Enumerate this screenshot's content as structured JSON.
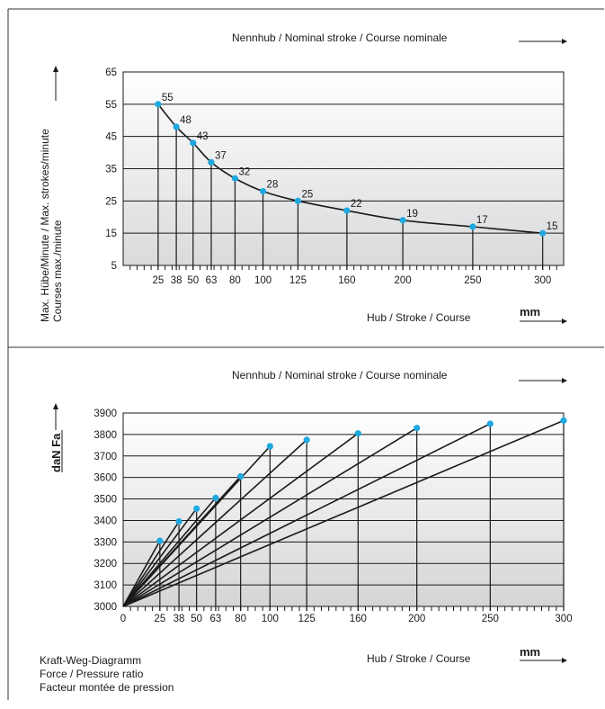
{
  "header_top": {
    "nominal_stroke_label": "Nennhub / Nominal stroke / Course nominale"
  },
  "header_bottom": {
    "nominal_stroke_label": "Nennhub / Nominal stroke / Course nominale"
  },
  "footer_caption": {
    "line1": "Kraft-Weg-Diagramm",
    "line2": "Force / Pressure ratio",
    "line3": "Facteur montée de pression"
  },
  "chart_data": [
    {
      "type": "line",
      "title": "",
      "ylabel_line1": "Max. Hübe/Minute / Max. strokes/minute",
      "ylabel_line2": "Courses max./minute",
      "xlabel": "Hub / Stroke / Course",
      "xunit": "mm",
      "ylim": [
        5,
        65
      ],
      "yticks": [
        5,
        15,
        25,
        35,
        45,
        55,
        65
      ],
      "xlim": [
        0,
        315
      ],
      "xticks": [
        25,
        38,
        50,
        63,
        80,
        100,
        125,
        160,
        200,
        250,
        300
      ],
      "grid": true,
      "points": [
        {
          "x": 25,
          "y": 55
        },
        {
          "x": 38,
          "y": 48
        },
        {
          "x": 50,
          "y": 43
        },
        {
          "x": 63,
          "y": 37
        },
        {
          "x": 80,
          "y": 32
        },
        {
          "x": 100,
          "y": 28
        },
        {
          "x": 125,
          "y": 25
        },
        {
          "x": 160,
          "y": 22
        },
        {
          "x": 200,
          "y": 19
        },
        {
          "x": 250,
          "y": 17
        },
        {
          "x": 300,
          "y": 15
        }
      ],
      "point_color": "#1ea8e0",
      "line_color": "#1a1a1a"
    },
    {
      "type": "line",
      "title": "",
      "ylabel": "daN Fa",
      "xlabel": "Hub / Stroke / Course",
      "xunit": "mm",
      "ylim": [
        3000,
        3900
      ],
      "yticks": [
        3000,
        3100,
        3200,
        3300,
        3400,
        3500,
        3600,
        3700,
        3800,
        3900
      ],
      "xlim": [
        0,
        300
      ],
      "xticks": [
        0,
        25,
        38,
        50,
        63,
        80,
        100,
        125,
        160,
        200,
        250,
        300
      ],
      "grid": true,
      "origin": {
        "x": 0,
        "y": 3000
      },
      "series": [
        {
          "x": 25,
          "y": 3305
        },
        {
          "x": 38,
          "y": 3395
        },
        {
          "x": 50,
          "y": 3455
        },
        {
          "x": 63,
          "y": 3505
        },
        {
          "x": 80,
          "y": 3605
        },
        {
          "x": 100,
          "y": 3745
        },
        {
          "x": 125,
          "y": 3775
        },
        {
          "x": 160,
          "y": 3805
        },
        {
          "x": 200,
          "y": 3830
        },
        {
          "x": 250,
          "y": 3850
        },
        {
          "x": 300,
          "y": 3865
        }
      ],
      "point_color": "#1ea8e0",
      "line_color": "#1a1a1a"
    }
  ]
}
